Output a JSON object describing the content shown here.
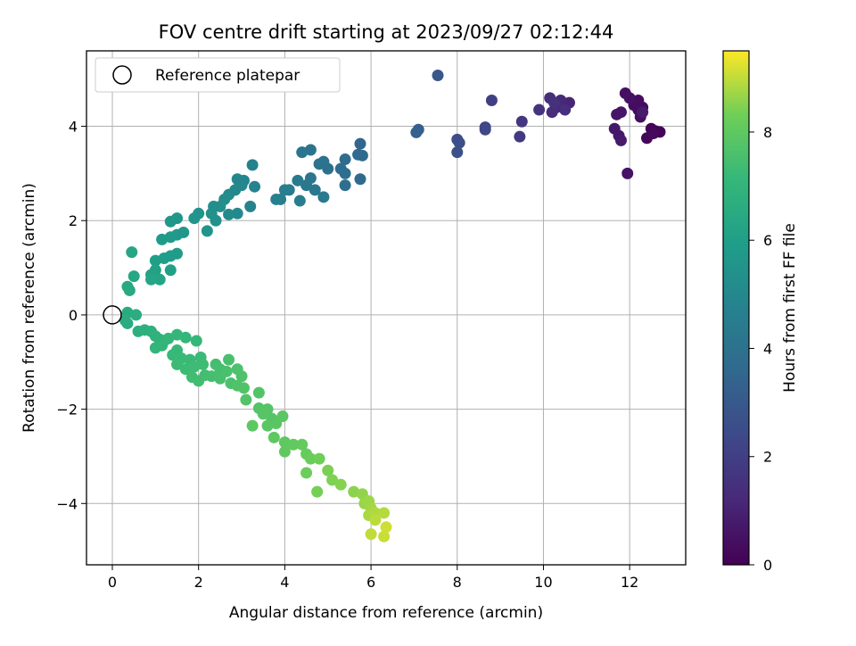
{
  "chart_data": {
    "type": "scatter",
    "title": "FOV centre drift starting at 2023/09/27 02:12:44",
    "xlabel": "Angular distance from reference (arcmin)",
    "ylabel": "Rotation from reference (arcmin)",
    "xlim": [
      -0.6,
      13.3
    ],
    "ylim": [
      -5.3,
      5.6
    ],
    "xticks": [
      "0",
      "2",
      "4",
      "6",
      "8",
      "10",
      "12"
    ],
    "yticks": [
      "−4",
      "−2",
      "0",
      "2",
      "4"
    ],
    "xtick_values": [
      0,
      2,
      4,
      6,
      8,
      10,
      12
    ],
    "ytick_values": [
      -4,
      -2,
      0,
      2,
      4
    ],
    "grid": true,
    "legend": {
      "placement": "upper-left",
      "entries": [
        "Reference platepar"
      ]
    },
    "reference_point": {
      "x": 0,
      "y": 0
    },
    "colorbar": {
      "label": "Hours from first FF file",
      "colormap": "viridis",
      "range": [
        0,
        9.5
      ],
      "ticks": [
        "0",
        "2",
        "4",
        "6",
        "8"
      ],
      "tick_values": [
        0,
        2,
        4,
        6,
        8
      ]
    },
    "points": [
      {
        "x": 12.5,
        "y": 3.95,
        "t": 0.05
      },
      {
        "x": 12.6,
        "y": 3.9,
        "t": 0.1
      },
      {
        "x": 12.7,
        "y": 3.88,
        "t": 0.12
      },
      {
        "x": 12.4,
        "y": 3.75,
        "t": 0.15
      },
      {
        "x": 12.55,
        "y": 3.85,
        "t": 0.2
      },
      {
        "x": 12.2,
        "y": 4.35,
        "t": 0.25
      },
      {
        "x": 12.3,
        "y": 4.4,
        "t": 0.3
      },
      {
        "x": 12.2,
        "y": 4.55,
        "t": 0.35
      },
      {
        "x": 12.1,
        "y": 4.45,
        "t": 0.38
      },
      {
        "x": 12.25,
        "y": 4.2,
        "t": 0.4
      },
      {
        "x": 11.9,
        "y": 4.7,
        "t": 0.45
      },
      {
        "x": 12.0,
        "y": 4.6,
        "t": 0.5
      },
      {
        "x": 11.95,
        "y": 3.0,
        "t": 0.55
      },
      {
        "x": 11.8,
        "y": 4.3,
        "t": 0.6
      },
      {
        "x": 11.7,
        "y": 4.25,
        "t": 0.62
      },
      {
        "x": 11.65,
        "y": 3.95,
        "t": 0.65
      },
      {
        "x": 11.75,
        "y": 3.8,
        "t": 0.7
      },
      {
        "x": 11.8,
        "y": 3.7,
        "t": 0.72
      },
      {
        "x": 12.3,
        "y": 4.3,
        "t": 0.75
      },
      {
        "x": 10.6,
        "y": 4.5,
        "t": 1.1
      },
      {
        "x": 10.4,
        "y": 4.55,
        "t": 1.2
      },
      {
        "x": 10.3,
        "y": 4.4,
        "t": 1.3
      },
      {
        "x": 10.2,
        "y": 4.3,
        "t": 1.35
      },
      {
        "x": 10.15,
        "y": 4.6,
        "t": 1.4
      },
      {
        "x": 10.5,
        "y": 4.35,
        "t": 1.45
      },
      {
        "x": 10.25,
        "y": 4.5,
        "t": 1.5
      },
      {
        "x": 9.9,
        "y": 4.35,
        "t": 1.6
      },
      {
        "x": 9.5,
        "y": 4.1,
        "t": 1.7
      },
      {
        "x": 9.45,
        "y": 3.78,
        "t": 1.8
      },
      {
        "x": 8.8,
        "y": 4.55,
        "t": 2.0
      },
      {
        "x": 8.65,
        "y": 3.98,
        "t": 2.2
      },
      {
        "x": 8.65,
        "y": 3.93,
        "t": 2.3
      },
      {
        "x": 8.0,
        "y": 3.72,
        "t": 2.5
      },
      {
        "x": 8.05,
        "y": 3.65,
        "t": 2.6
      },
      {
        "x": 8.0,
        "y": 3.45,
        "t": 2.7
      },
      {
        "x": 7.55,
        "y": 5.08,
        "t": 2.9
      },
      {
        "x": 7.1,
        "y": 3.93,
        "t": 3.2
      },
      {
        "x": 7.05,
        "y": 3.87,
        "t": 3.3
      },
      {
        "x": 5.75,
        "y": 3.63,
        "t": 3.5
      },
      {
        "x": 5.8,
        "y": 3.38,
        "t": 3.6
      },
      {
        "x": 5.7,
        "y": 3.4,
        "t": 3.65
      },
      {
        "x": 5.75,
        "y": 2.88,
        "t": 3.7
      },
      {
        "x": 5.4,
        "y": 3.3,
        "t": 3.75
      },
      {
        "x": 5.3,
        "y": 3.1,
        "t": 3.8
      },
      {
        "x": 5.4,
        "y": 3.0,
        "t": 3.85
      },
      {
        "x": 5.4,
        "y": 2.75,
        "t": 3.9
      },
      {
        "x": 5.0,
        "y": 3.1,
        "t": 3.95
      },
      {
        "x": 4.9,
        "y": 3.25,
        "t": 4.0
      },
      {
        "x": 4.8,
        "y": 3.2,
        "t": 4.05
      },
      {
        "x": 4.6,
        "y": 3.5,
        "t": 4.1
      },
      {
        "x": 4.4,
        "y": 3.45,
        "t": 4.15
      },
      {
        "x": 4.6,
        "y": 2.9,
        "t": 4.2
      },
      {
        "x": 4.5,
        "y": 2.75,
        "t": 4.25
      },
      {
        "x": 4.7,
        "y": 2.65,
        "t": 4.3
      },
      {
        "x": 4.9,
        "y": 2.5,
        "t": 4.35
      },
      {
        "x": 4.3,
        "y": 2.85,
        "t": 4.4
      },
      {
        "x": 4.1,
        "y": 2.65,
        "t": 4.45
      },
      {
        "x": 4.35,
        "y": 2.42,
        "t": 4.5
      },
      {
        "x": 4.0,
        "y": 2.65,
        "t": 4.55
      },
      {
        "x": 3.9,
        "y": 2.45,
        "t": 4.6
      },
      {
        "x": 3.8,
        "y": 2.45,
        "t": 4.65
      },
      {
        "x": 3.25,
        "y": 3.18,
        "t": 4.7
      },
      {
        "x": 3.3,
        "y": 2.72,
        "t": 4.75
      },
      {
        "x": 3.2,
        "y": 2.3,
        "t": 4.8
      },
      {
        "x": 3.05,
        "y": 2.85,
        "t": 4.85
      },
      {
        "x": 2.9,
        "y": 2.88,
        "t": 4.9
      },
      {
        "x": 3.0,
        "y": 2.75,
        "t": 4.95
      },
      {
        "x": 2.85,
        "y": 2.65,
        "t": 5.0
      },
      {
        "x": 2.9,
        "y": 2.15,
        "t": 5.05
      },
      {
        "x": 2.7,
        "y": 2.55,
        "t": 5.1
      },
      {
        "x": 2.7,
        "y": 2.13,
        "t": 5.15
      },
      {
        "x": 2.6,
        "y": 2.45,
        "t": 5.2
      },
      {
        "x": 2.5,
        "y": 2.3,
        "t": 5.25
      },
      {
        "x": 2.35,
        "y": 2.3,
        "t": 5.3
      },
      {
        "x": 2.3,
        "y": 2.15,
        "t": 5.35
      },
      {
        "x": 2.4,
        "y": 2.0,
        "t": 5.4
      },
      {
        "x": 2.0,
        "y": 2.15,
        "t": 5.45
      },
      {
        "x": 1.9,
        "y": 2.05,
        "t": 5.5
      },
      {
        "x": 2.2,
        "y": 1.78,
        "t": 5.55
      },
      {
        "x": 1.5,
        "y": 2.05,
        "t": 5.6
      },
      {
        "x": 1.35,
        "y": 1.98,
        "t": 5.65
      },
      {
        "x": 1.65,
        "y": 1.75,
        "t": 5.7
      },
      {
        "x": 1.5,
        "y": 1.7,
        "t": 5.72
      },
      {
        "x": 1.35,
        "y": 1.65,
        "t": 5.75
      },
      {
        "x": 1.15,
        "y": 1.6,
        "t": 5.8
      },
      {
        "x": 1.5,
        "y": 1.3,
        "t": 5.85
      },
      {
        "x": 1.35,
        "y": 1.25,
        "t": 5.9
      },
      {
        "x": 1.2,
        "y": 1.2,
        "t": 5.95
      },
      {
        "x": 1.0,
        "y": 1.15,
        "t": 6.0
      },
      {
        "x": 1.35,
        "y": 0.95,
        "t": 6.05
      },
      {
        "x": 1.0,
        "y": 0.95,
        "t": 6.1
      },
      {
        "x": 0.9,
        "y": 0.85,
        "t": 6.15
      },
      {
        "x": 1.1,
        "y": 0.75,
        "t": 6.2
      },
      {
        "x": 0.9,
        "y": 0.75,
        "t": 6.25
      },
      {
        "x": 0.45,
        "y": 1.33,
        "t": 6.3
      },
      {
        "x": 0.5,
        "y": 0.82,
        "t": 6.35
      },
      {
        "x": 0.35,
        "y": 0.6,
        "t": 6.4
      },
      {
        "x": 0.4,
        "y": 0.52,
        "t": 6.45
      },
      {
        "x": 0.35,
        "y": 0.05,
        "t": 6.5
      },
      {
        "x": 0.3,
        "y": -0.12,
        "t": 6.55
      },
      {
        "x": 0.35,
        "y": -0.18,
        "t": 6.6
      },
      {
        "x": 0.55,
        "y": 0.0,
        "t": 6.65
      },
      {
        "x": 0.6,
        "y": -0.35,
        "t": 6.7
      },
      {
        "x": 0.75,
        "y": -0.32,
        "t": 6.75
      },
      {
        "x": 0.9,
        "y": -0.35,
        "t": 6.8
      },
      {
        "x": 1.0,
        "y": -0.45,
        "t": 6.85
      },
      {
        "x": 1.1,
        "y": -0.52,
        "t": 6.9
      },
      {
        "x": 1.2,
        "y": -0.55,
        "t": 6.95
      },
      {
        "x": 1.0,
        "y": -0.7,
        "t": 7.0
      },
      {
        "x": 1.15,
        "y": -0.65,
        "t": 7.02
      },
      {
        "x": 1.3,
        "y": -0.5,
        "t": 7.05
      },
      {
        "x": 1.5,
        "y": -0.42,
        "t": 7.08
      },
      {
        "x": 1.7,
        "y": -0.48,
        "t": 7.1
      },
      {
        "x": 1.95,
        "y": -0.55,
        "t": 7.12
      },
      {
        "x": 1.5,
        "y": -0.75,
        "t": 7.15
      },
      {
        "x": 1.4,
        "y": -0.85,
        "t": 7.18
      },
      {
        "x": 1.6,
        "y": -0.92,
        "t": 7.2
      },
      {
        "x": 1.8,
        "y": -0.95,
        "t": 7.22
      },
      {
        "x": 2.05,
        "y": -0.9,
        "t": 7.25
      },
      {
        "x": 1.5,
        "y": -1.05,
        "t": 7.28
      },
      {
        "x": 1.7,
        "y": -1.15,
        "t": 7.3
      },
      {
        "x": 1.9,
        "y": -1.1,
        "t": 7.32
      },
      {
        "x": 2.1,
        "y": -1.05,
        "t": 7.35
      },
      {
        "x": 1.85,
        "y": -1.32,
        "t": 7.38
      },
      {
        "x": 2.0,
        "y": -1.4,
        "t": 7.4
      },
      {
        "x": 2.15,
        "y": -1.28,
        "t": 7.42
      },
      {
        "x": 2.4,
        "y": -1.05,
        "t": 7.45
      },
      {
        "x": 2.5,
        "y": -1.15,
        "t": 7.48
      },
      {
        "x": 2.3,
        "y": -1.3,
        "t": 7.5
      },
      {
        "x": 2.5,
        "y": -1.35,
        "t": 7.52
      },
      {
        "x": 2.7,
        "y": -0.95,
        "t": 7.55
      },
      {
        "x": 2.65,
        "y": -1.2,
        "t": 7.57
      },
      {
        "x": 2.75,
        "y": -1.45,
        "t": 7.6
      },
      {
        "x": 2.9,
        "y": -1.15,
        "t": 7.62
      },
      {
        "x": 3.0,
        "y": -1.3,
        "t": 7.65
      },
      {
        "x": 2.9,
        "y": -1.5,
        "t": 7.68
      },
      {
        "x": 3.05,
        "y": -1.55,
        "t": 7.7
      },
      {
        "x": 3.1,
        "y": -1.8,
        "t": 7.72
      },
      {
        "x": 3.4,
        "y": -1.65,
        "t": 7.75
      },
      {
        "x": 3.4,
        "y": -1.98,
        "t": 7.78
      },
      {
        "x": 3.6,
        "y": -2.0,
        "t": 7.8
      },
      {
        "x": 3.7,
        "y": -2.2,
        "t": 7.82
      },
      {
        "x": 3.5,
        "y": -2.1,
        "t": 7.85
      },
      {
        "x": 3.6,
        "y": -2.35,
        "t": 7.88
      },
      {
        "x": 3.8,
        "y": -2.3,
        "t": 7.9
      },
      {
        "x": 3.95,
        "y": -2.15,
        "t": 7.92
      },
      {
        "x": 3.25,
        "y": -2.35,
        "t": 7.95
      },
      {
        "x": 3.75,
        "y": -2.6,
        "t": 7.98
      },
      {
        "x": 4.0,
        "y": -2.7,
        "t": 8.0
      },
      {
        "x": 4.0,
        "y": -2.9,
        "t": 8.02
      },
      {
        "x": 4.2,
        "y": -2.75,
        "t": 8.05
      },
      {
        "x": 4.4,
        "y": -2.75,
        "t": 8.1
      },
      {
        "x": 4.5,
        "y": -2.95,
        "t": 8.15
      },
      {
        "x": 4.6,
        "y": -3.05,
        "t": 8.2
      },
      {
        "x": 4.5,
        "y": -3.35,
        "t": 8.25
      },
      {
        "x": 4.8,
        "y": -3.05,
        "t": 8.3
      },
      {
        "x": 4.75,
        "y": -3.75,
        "t": 8.35
      },
      {
        "x": 5.0,
        "y": -3.3,
        "t": 8.4
      },
      {
        "x": 5.1,
        "y": -3.5,
        "t": 8.45
      },
      {
        "x": 5.3,
        "y": -3.6,
        "t": 8.5
      },
      {
        "x": 5.6,
        "y": -3.75,
        "t": 8.55
      },
      {
        "x": 5.8,
        "y": -3.8,
        "t": 8.6
      },
      {
        "x": 5.85,
        "y": -4.0,
        "t": 8.65
      },
      {
        "x": 5.95,
        "y": -3.95,
        "t": 8.7
      },
      {
        "x": 6.0,
        "y": -4.1,
        "t": 8.75
      },
      {
        "x": 5.95,
        "y": -4.25,
        "t": 8.8
      },
      {
        "x": 6.1,
        "y": -4.2,
        "t": 8.85
      },
      {
        "x": 6.3,
        "y": -4.2,
        "t": 8.9
      },
      {
        "x": 6.1,
        "y": -4.35,
        "t": 8.95
      },
      {
        "x": 6.0,
        "y": -4.65,
        "t": 9.0
      },
      {
        "x": 6.3,
        "y": -4.7,
        "t": 9.05
      },
      {
        "x": 6.35,
        "y": -4.5,
        "t": 9.1
      }
    ]
  }
}
